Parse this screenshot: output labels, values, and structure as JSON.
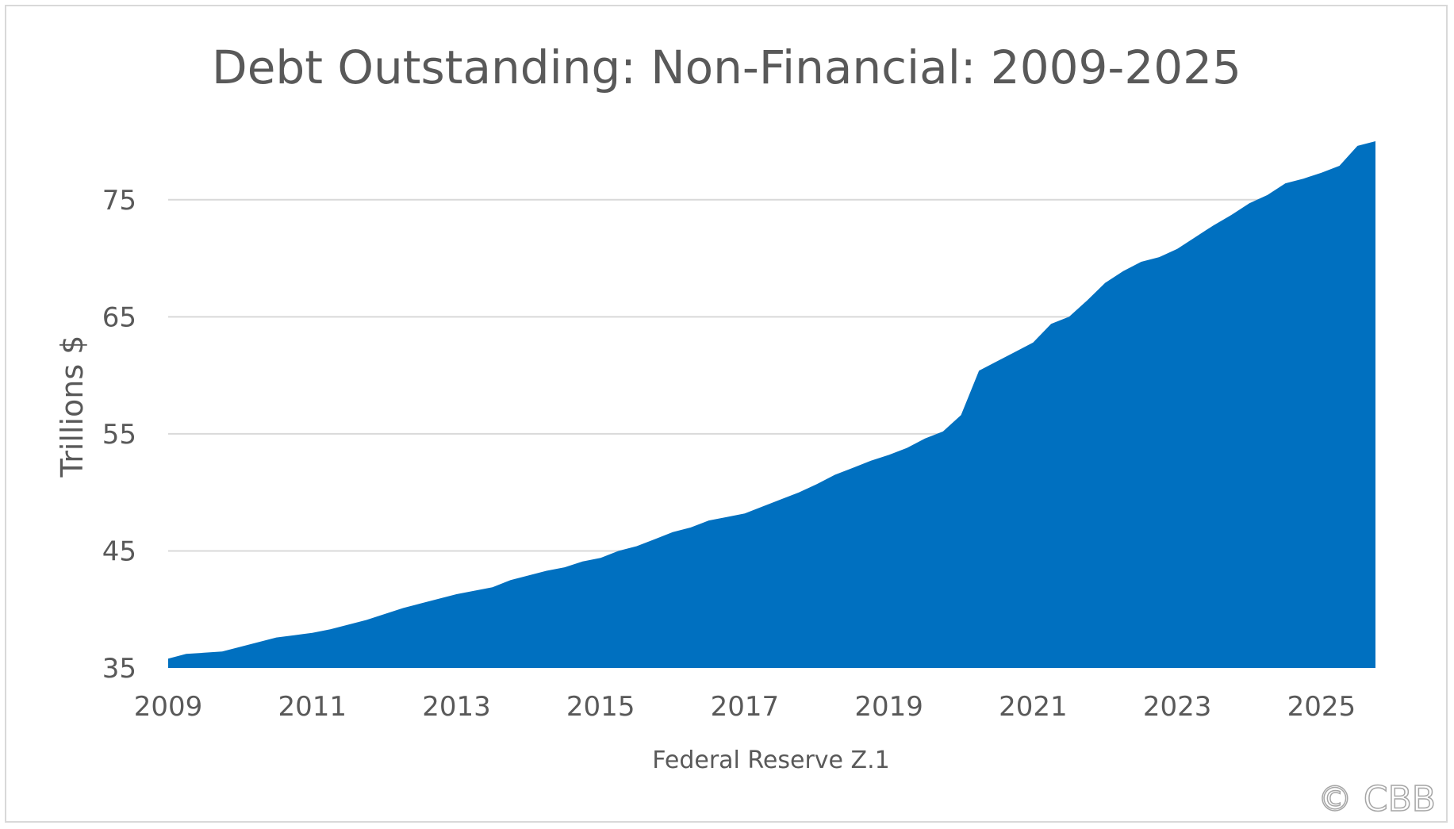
{
  "chart_data": {
    "type": "area",
    "title": "Debt Outstanding: Non-Financial: 2009-2025",
    "xlabel": "Federal Reserve Z.1",
    "ylabel": "Trillions $",
    "watermark": "© CBB",
    "ylim": [
      35,
      80
    ],
    "xlim": [
      2009,
      2025.75
    ],
    "yticks": [
      "35",
      "45",
      "55",
      "65",
      "75"
    ],
    "xticks": [
      "2009",
      "2011",
      "2013",
      "2015",
      "2017",
      "2019",
      "2021",
      "2023",
      "2025"
    ],
    "grid": "horizontal",
    "color": "#0070C0",
    "x": [
      2009,
      2009.25,
      2009.5,
      2009.75,
      2010,
      2010.25,
      2010.5,
      2010.75,
      2011,
      2011.25,
      2011.5,
      2011.75,
      2012,
      2012.25,
      2012.5,
      2012.75,
      2013,
      2013.25,
      2013.5,
      2013.75,
      2014,
      2014.25,
      2014.5,
      2014.75,
      2015,
      2015.25,
      2015.5,
      2015.75,
      2016,
      2016.25,
      2016.5,
      2016.75,
      2017,
      2017.25,
      2017.5,
      2017.75,
      2018,
      2018.25,
      2018.5,
      2018.75,
      2019,
      2019.25,
      2019.5,
      2019.75,
      2020,
      2020.25,
      2020.5,
      2020.75,
      2021,
      2021.25,
      2021.5,
      2021.75,
      2022,
      2022.25,
      2022.5,
      2022.75,
      2023,
      2023.25,
      2023.5,
      2023.75,
      2024,
      2024.25,
      2024.5,
      2024.75,
      2025,
      2025.25,
      2025.5,
      2025.75
    ],
    "values": [
      35.8,
      36.2,
      36.3,
      36.4,
      36.8,
      37.2,
      37.6,
      37.8,
      38.0,
      38.3,
      38.7,
      39.1,
      39.6,
      40.1,
      40.5,
      40.9,
      41.3,
      41.6,
      41.9,
      42.5,
      42.9,
      43.3,
      43.6,
      44.1,
      44.4,
      45.0,
      45.4,
      46.0,
      46.6,
      47.0,
      47.6,
      47.9,
      48.2,
      48.8,
      49.4,
      50.0,
      50.7,
      51.5,
      52.1,
      52.7,
      53.2,
      53.8,
      54.6,
      55.2,
      56.6,
      60.4,
      61.2,
      62.0,
      62.8,
      64.4,
      65.0,
      66.4,
      67.9,
      68.9,
      69.7,
      70.1,
      70.8,
      71.8,
      72.8,
      73.7,
      74.7,
      75.4,
      76.4,
      76.8,
      77.3,
      77.9,
      79.6,
      80.1
    ]
  }
}
